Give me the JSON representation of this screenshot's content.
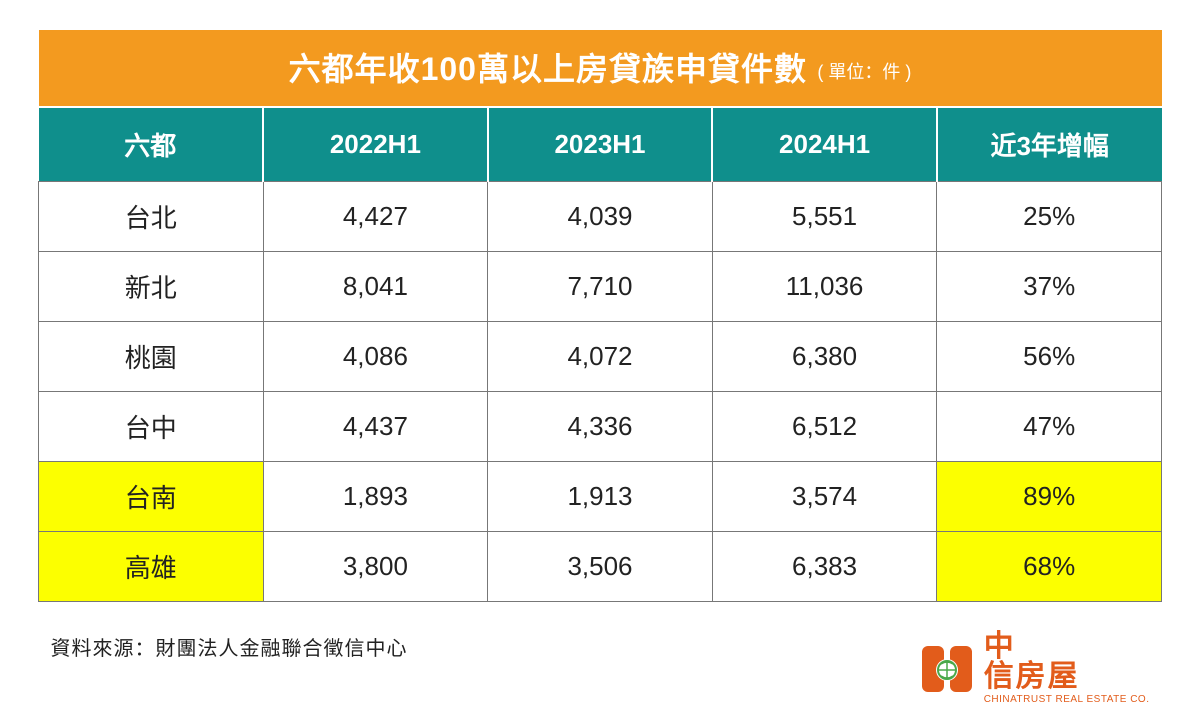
{
  "title": {
    "main": "六都年收100萬以上房貸族申貸件數",
    "unit": "( 單位：件 )"
  },
  "columns": [
    "六都",
    "2022H1",
    "2023H1",
    "2024H1",
    "近3年增幅"
  ],
  "rows": [
    {
      "city": "台北",
      "c1": "4,427",
      "c2": "4,039",
      "c3": "5,551",
      "growth": "25%",
      "highlight": false
    },
    {
      "city": "新北",
      "c1": "8,041",
      "c2": "7,710",
      "c3": "11,036",
      "growth": "37%",
      "highlight": false
    },
    {
      "city": "桃園",
      "c1": "4,086",
      "c2": "4,072",
      "c3": "6,380",
      "growth": "56%",
      "highlight": false
    },
    {
      "city": "台中",
      "c1": "4,437",
      "c2": "4,336",
      "c3": "6,512",
      "growth": "47%",
      "highlight": false
    },
    {
      "city": "台南",
      "c1": "1,893",
      "c2": "1,913",
      "c3": "3,574",
      "growth": "89%",
      "highlight": true
    },
    {
      "city": "高雄",
      "c1": "3,800",
      "c2": "3,506",
      "c3": "6,383",
      "growth": "68%",
      "highlight": true
    }
  ],
  "source": "資料來源：財團法人金融聯合徵信中心",
  "logo": {
    "line1": "中",
    "line2": "信房屋",
    "sub": "CHINATRUST REAL ESTATE CO."
  },
  "colors": {
    "title_bg": "#f39a1f",
    "header_bg": "#0f8f8c",
    "highlight_bg": "#fcff00",
    "border": "#777777",
    "logo": "#e25c1b"
  }
}
